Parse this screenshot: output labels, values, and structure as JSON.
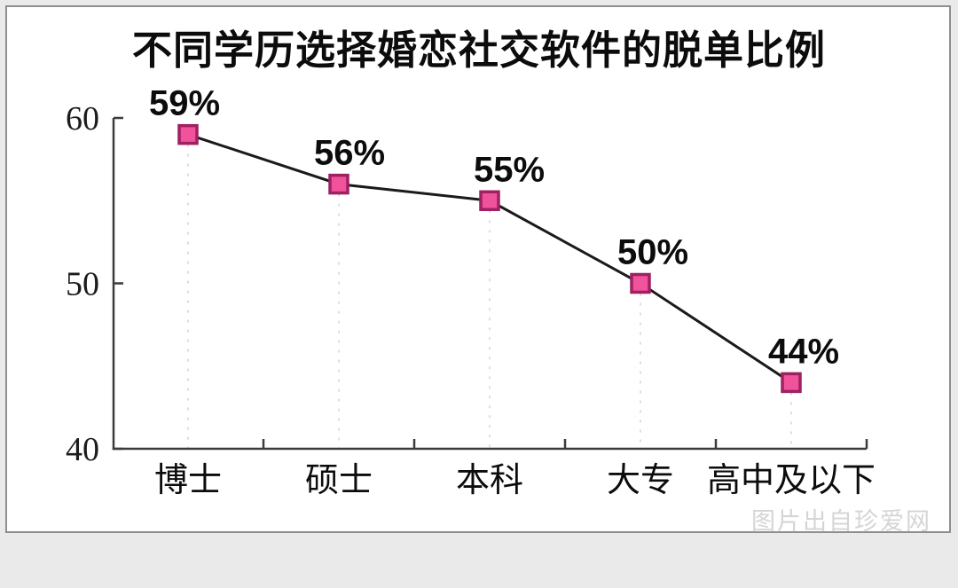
{
  "page": {
    "background_color": "#eaeaea",
    "card_border_color": "#8f8f8f",
    "watermark": "图片出自珍爱网"
  },
  "chart_data": {
    "type": "line",
    "title": "不同学历选择婚恋社交软件的脱单比例",
    "categories": [
      "博士",
      "硕士",
      "本科",
      "大专",
      "高中及以下"
    ],
    "values": [
      59,
      56,
      55,
      50,
      44
    ],
    "point_labels": [
      "59%",
      "56%",
      "55%",
      "50%",
      "44%"
    ],
    "xlabel": "",
    "ylabel": "",
    "ylim": [
      40,
      60
    ],
    "yticks": [
      40,
      50,
      60
    ],
    "grid": "off",
    "legend": "none",
    "marker_shape": "square",
    "marker_fill": "#f0539c",
    "marker_stroke": "#9e2161",
    "line_color": "#1a1a1a",
    "guide_line_color": "#dedede",
    "axis_color": "#3b3b3b",
    "text_color": "#0c0c0c"
  }
}
